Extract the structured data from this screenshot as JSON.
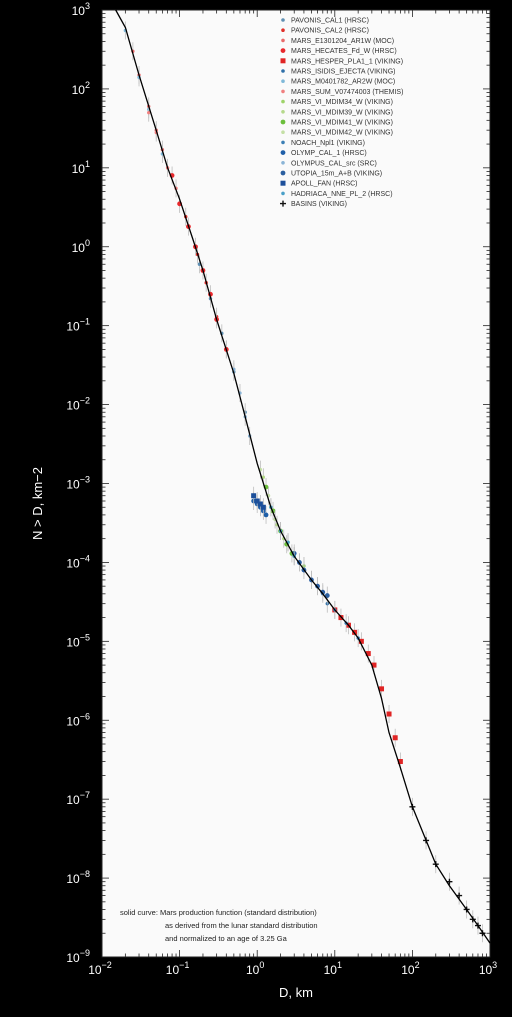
{
  "chart_data": {
    "type": "scatter",
    "title": "",
    "xlabel": "D, km",
    "ylabel": "N > D, km−2",
    "x_scale": "log",
    "y_scale": "log",
    "xlim": [
      0.01,
      1000
    ],
    "ylim": [
      1e-09,
      1000
    ],
    "grid": false,
    "legend_position": "top-right",
    "x_ticks": [
      {
        "value": 0.01,
        "base": "10",
        "exp": "−2"
      },
      {
        "value": 0.1,
        "base": "10",
        "exp": "−1"
      },
      {
        "value": 1,
        "base": "10",
        "exp": "0"
      },
      {
        "value": 10,
        "base": "10",
        "exp": "1"
      },
      {
        "value": 100,
        "base": "10",
        "exp": "2"
      },
      {
        "value": 1000,
        "base": "10",
        "exp": "3"
      }
    ],
    "y_ticks": [
      {
        "value": 1e-09,
        "base": "10",
        "exp": "−9"
      },
      {
        "value": 1e-08,
        "base": "10",
        "exp": "−8"
      },
      {
        "value": 1e-07,
        "base": "10",
        "exp": "−7"
      },
      {
        "value": 1e-06,
        "base": "10",
        "exp": "−6"
      },
      {
        "value": 1e-05,
        "base": "10",
        "exp": "−5"
      },
      {
        "value": 0.0001,
        "base": "10",
        "exp": "−4"
      },
      {
        "value": 0.001,
        "base": "10",
        "exp": "−3"
      },
      {
        "value": 0.01,
        "base": "10",
        "exp": "−2"
      },
      {
        "value": 0.1,
        "base": "10",
        "exp": "−1"
      },
      {
        "value": 1,
        "base": "10",
        "exp": "0"
      },
      {
        "value": 10,
        "base": "10",
        "exp": "1"
      },
      {
        "value": 100,
        "base": "10",
        "exp": "2"
      },
      {
        "value": 1000,
        "base": "10",
        "exp": "3"
      }
    ],
    "production_curve": {
      "x": [
        0.015,
        0.02,
        0.03,
        0.05,
        0.07,
        0.1,
        0.15,
        0.2,
        0.3,
        0.5,
        0.7,
        1,
        1.5,
        2,
        3,
        5,
        7,
        10,
        15,
        20,
        30,
        40,
        50,
        70,
        100,
        150,
        200,
        300,
        500,
        700,
        1000
      ],
      "y": [
        1500,
        600,
        150,
        30,
        10,
        4,
        1.2,
        0.5,
        0.12,
        0.025,
        0.007,
        0.0018,
        0.0005,
        0.00025,
        0.00012,
        6e-05,
        4e-05,
        2.5e-05,
        1.6e-05,
        1.1e-05,
        5e-06,
        1.9e-06,
        7e-07,
        2.5e-07,
        8e-08,
        3e-08,
        1.5e-08,
        8e-09,
        4e-09,
        2.5e-09,
        1.5e-09
      ]
    },
    "series": [
      {
        "name": "PAVONIS_CAL1 (HRSC)",
        "color": "#5e8fb2",
        "marker": "dot-small",
        "x": [
          0.18,
          0.25,
          0.35,
          0.5,
          0.7
        ],
        "y": [
          0.6,
          0.22,
          0.08,
          0.026,
          0.008
        ]
      },
      {
        "name": "PAVONIS_CAL2 (HRSC)",
        "color": "#e0302a",
        "marker": "dot-small",
        "x": [
          0.12,
          0.17,
          0.22,
          0.3,
          0.4
        ],
        "y": [
          2.4,
          0.8,
          0.35,
          0.13,
          0.05
        ]
      },
      {
        "name": "MARS_E1301204_AR1W (MOC)",
        "color": "#e86a6a",
        "marker": "dot-small",
        "x": [
          0.025,
          0.03,
          0.04,
          0.05,
          0.06
        ],
        "y": [
          300,
          150,
          60,
          30,
          17
        ]
      },
      {
        "name": "MARS_HECATES_Fd_W (HRSC)",
        "color": "#e8282c",
        "marker": "dot",
        "x": [
          0.08,
          0.1,
          0.13,
          0.16,
          0.2,
          0.25,
          0.3,
          0.4
        ],
        "y": [
          8,
          3.5,
          1.8,
          1,
          0.5,
          0.25,
          0.12,
          0.05
        ]
      },
      {
        "name": "MARS_HESPER_PLA1_1 (VIKING)",
        "color": "#e02424",
        "marker": "square",
        "x": [
          10,
          12,
          15,
          18,
          22,
          27,
          32,
          40,
          50,
          60,
          70
        ],
        "y": [
          2.5e-05,
          2e-05,
          1.6e-05,
          1.3e-05,
          1e-05,
          7e-06,
          5e-06,
          2.5e-06,
          1.2e-06,
          6e-07,
          3e-07
        ]
      },
      {
        "name": "MARS_ISIDIS_EJECTA (VIKING)",
        "color": "#2e6fa8",
        "marker": "dot-small",
        "x": [
          3,
          4,
          5,
          6,
          8
        ],
        "y": [
          0.00012,
          9e-05,
          6e-05,
          5e-05,
          3e-05
        ]
      },
      {
        "name": "MARS_M0401782_AR2W (MOC)",
        "color": "#7fb8d8",
        "marker": "dot-small",
        "x": [
          0.02,
          0.03,
          0.04,
          0.06
        ],
        "y": [
          550,
          140,
          55,
          15
        ]
      },
      {
        "name": "MARS_SUM_V07474003 (THEMIS)",
        "color": "#f08080",
        "marker": "dot-small",
        "x": [
          0.04,
          0.05,
          0.07,
          0.09
        ],
        "y": [
          50,
          28,
          10,
          5.5
        ]
      },
      {
        "name": "MARS_VI_MDIM34_W (VIKING)",
        "color": "#9ed36a",
        "marker": "dot-small",
        "x": [
          2,
          2.5,
          3,
          3.5,
          4
        ],
        "y": [
          0.00025,
          0.00018,
          0.00012,
          0.0001,
          9e-05
        ]
      },
      {
        "name": "MARS_VI_MDIM39_W (VIKING)",
        "color": "#b5d98b",
        "marker": "dot-small",
        "x": [
          1.2,
          1.5,
          1.8,
          2.2
        ],
        "y": [
          0.0012,
          0.0005,
          0.0003,
          0.0002
        ]
      },
      {
        "name": "MARS_VI_MDIM41_W (VIKING)",
        "color": "#6cbf3c",
        "marker": "dot",
        "x": [
          1.3,
          1.6,
          2,
          2.4,
          2.8
        ],
        "y": [
          0.0009,
          0.00045,
          0.00025,
          0.00017,
          0.00013
        ]
      },
      {
        "name": "MARS_VI_MDIM42_W (VIKING)",
        "color": "#c4dfa5",
        "marker": "dot-small",
        "x": [
          1.1,
          1.4,
          1.7
        ],
        "y": [
          0.0015,
          0.0007,
          0.00035
        ]
      },
      {
        "name": "NOACH_Npl1 (VIKING)",
        "color": "#3b7fb5",
        "marker": "dot-small",
        "x": [
          5,
          7,
          10,
          14,
          20
        ],
        "y": [
          6e-05,
          4e-05,
          2.5e-05,
          1.7e-05,
          1.1e-05
        ]
      },
      {
        "name": "OLYMP_CAL_1 (HRSC)",
        "color": "#1f5fa8",
        "marker": "dot",
        "x": [
          0.9,
          1.0,
          1.1,
          1.2,
          1.3
        ],
        "y": [
          0.0006,
          0.00055,
          0.0005,
          0.00045,
          0.0004
        ]
      },
      {
        "name": "OLYMPUS_CAL_src (SRC)",
        "color": "#8ab4d6",
        "marker": "dot-small",
        "x": [
          0.5,
          0.6,
          0.7,
          0.8
        ],
        "y": [
          0.028,
          0.014,
          0.007,
          0.004
        ]
      },
      {
        "name": "UTOPIA_15m_A+B (VIKING)",
        "color": "#2b5fa0",
        "marker": "dot",
        "x": [
          3,
          3.5,
          4,
          5,
          6,
          7,
          8
        ],
        "y": [
          0.00013,
          0.0001,
          8e-05,
          6e-05,
          5e-05,
          4.2e-05,
          3.8e-05
        ]
      },
      {
        "name": "APOLL_FAN (HRSC)",
        "color": "#1c4f9a",
        "marker": "square",
        "x": [
          0.9,
          1.0,
          1.1,
          1.2
        ],
        "y": [
          0.0007,
          0.0006,
          0.00055,
          0.0005
        ]
      },
      {
        "name": "HADRIACA_NNE_PL_2 (HRSC)",
        "color": "#4aa0c8",
        "marker": "dot-small",
        "x": [
          1.5,
          2,
          2.5,
          3
        ],
        "y": [
          0.0005,
          0.00025,
          0.00018,
          0.00012
        ]
      },
      {
        "name": "BASINS (VIKING)",
        "color": "#111111",
        "marker": "plus",
        "x": [
          100,
          150,
          200,
          300,
          400,
          500,
          600,
          700,
          800
        ],
        "y": [
          8e-08,
          3e-08,
          1.5e-08,
          9e-09,
          6e-09,
          4e-09,
          3e-09,
          2.5e-09,
          2e-09
        ]
      }
    ],
    "annotation": {
      "lines": [
        "solid curve: Mars production function (standard distribution)",
        "as derived from the lunar standard distribution",
        "and normalized to an age of 3.25 Ga"
      ]
    }
  }
}
